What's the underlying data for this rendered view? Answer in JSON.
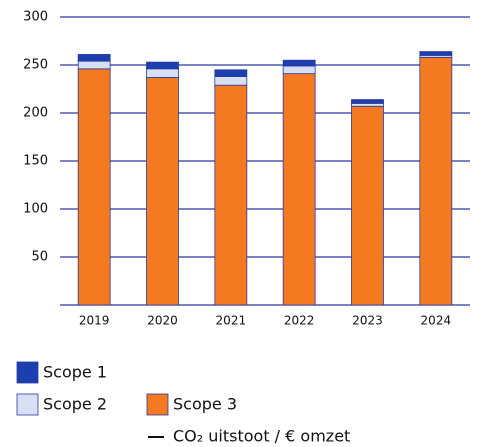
{
  "chart_data": {
    "type": "bar",
    "stacked": true,
    "categories": [
      "2019",
      "2020",
      "2021",
      "2022",
      "2023",
      "2024"
    ],
    "series": [
      {
        "name": "Scope 3",
        "color": "#f47920",
        "values": [
          246,
          237,
          229,
          241,
          207,
          258
        ]
      },
      {
        "name": "Scope 2",
        "color": "#d7e0f5",
        "values": [
          8,
          9,
          9,
          8,
          3,
          2
        ]
      },
      {
        "name": "Scope 1",
        "color": "#1c3fb0",
        "values": [
          7,
          7,
          7,
          6,
          4,
          4
        ]
      },
      {
        "name": "CO₂ uitstoot / € omzet",
        "type": "line",
        "color": "#111111",
        "values": [
          null,
          null,
          null,
          null,
          null,
          null
        ]
      }
    ],
    "ylim": [
      0,
      300
    ],
    "yticks": [
      50,
      100,
      150,
      200,
      250,
      300
    ],
    "grid": true
  }
}
